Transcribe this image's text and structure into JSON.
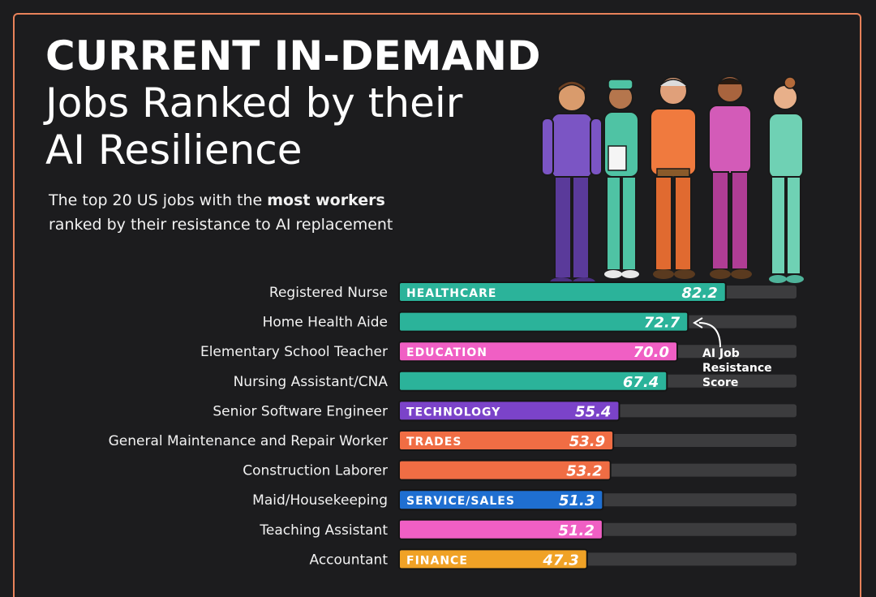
{
  "header": {
    "title_line1": "CURRENT IN-DEMAND",
    "title_line2": "Jobs Ranked by their",
    "title_line3": "AI Resilience",
    "subtitle_pre": "The top 20 US jobs with the ",
    "subtitle_bold": "most workers",
    "subtitle_post": "ranked by their resistance to AI replacement"
  },
  "annotation": {
    "lines": [
      "AI Job",
      "Resistance",
      "Score"
    ]
  },
  "colors": {
    "background": "#1c1c1e",
    "border": "#e8825a",
    "track": "#3c3c3e",
    "healthcare": "#2bb39a",
    "education": "#f05fc4",
    "technology": "#7b43c9",
    "trades": "#f06d44",
    "service_sales": "#1f6fd1",
    "finance": "#f0a226"
  },
  "chart_data": {
    "type": "bar",
    "orientation": "horizontal",
    "value_label": "AI Job Resistance Score",
    "xlim": [
      0,
      100
    ],
    "categories": [
      "Registered Nurse",
      "Home Health Aide",
      "Elementary School Teacher",
      "Nursing Assistant/CNA",
      "Senior Software Engineer",
      "General Maintenance and Repair Worker",
      "Construction Laborer",
      "Maid/Housekeeping",
      "Teaching Assistant",
      "Accountant"
    ],
    "values": [
      82.2,
      72.7,
      70.0,
      67.4,
      55.4,
      53.9,
      53.2,
      51.3,
      51.2,
      47.3
    ],
    "value_labels": [
      "82.2",
      "72.7",
      "70.0",
      "67.4",
      "55.4",
      "53.9",
      "53.2",
      "51.3",
      "51.2",
      "47.3"
    ],
    "sectors": [
      "healthcare",
      "healthcare",
      "education",
      "healthcare",
      "technology",
      "trades",
      "trades",
      "service_sales",
      "education",
      "finance"
    ],
    "sector_tags": [
      "HEALTHCARE",
      "",
      "EDUCATION",
      "",
      "TECHNOLOGY",
      "TRADES",
      "",
      "SERVICE/SALES",
      "",
      "FINANCE"
    ]
  }
}
